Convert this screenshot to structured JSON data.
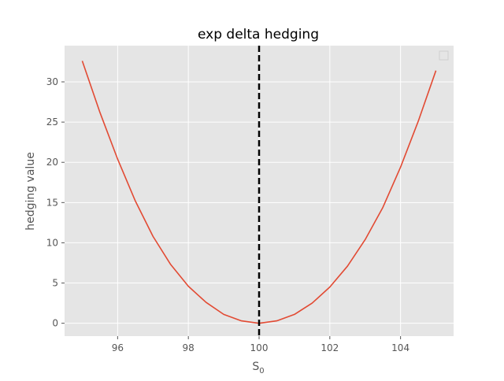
{
  "chart_data": {
    "type": "line",
    "title": "exp delta hedging",
    "xlabel": "S",
    "xlabel_subscript": "0",
    "ylabel": "hedging value",
    "xlim": [
      94.5,
      105.5
    ],
    "ylim": [
      -1.6,
      34.5
    ],
    "xticks": [
      96,
      98,
      100,
      102,
      104
    ],
    "yticks": [
      0,
      5,
      10,
      15,
      20,
      25,
      30
    ],
    "grid": true,
    "legend": "top-right",
    "vline": {
      "x": 100,
      "style": "dashed",
      "color": "#000000"
    },
    "series": [
      {
        "color": "#E24A33",
        "x": [
          95.0,
          95.5,
          96.0,
          96.5,
          97.0,
          97.5,
          98.0,
          98.5,
          99.0,
          99.5,
          100.0,
          100.5,
          101.0,
          101.5,
          102.0,
          102.5,
          103.0,
          103.5,
          104.0,
          104.5,
          105.0
        ],
        "y": [
          32.6,
          26.2,
          20.4,
          15.2,
          10.8,
          7.3,
          4.6,
          2.6,
          1.1,
          0.3,
          0.0,
          0.3,
          1.1,
          2.5,
          4.5,
          7.1,
          10.4,
          14.4,
          19.4,
          25.1,
          31.4
        ]
      }
    ]
  }
}
